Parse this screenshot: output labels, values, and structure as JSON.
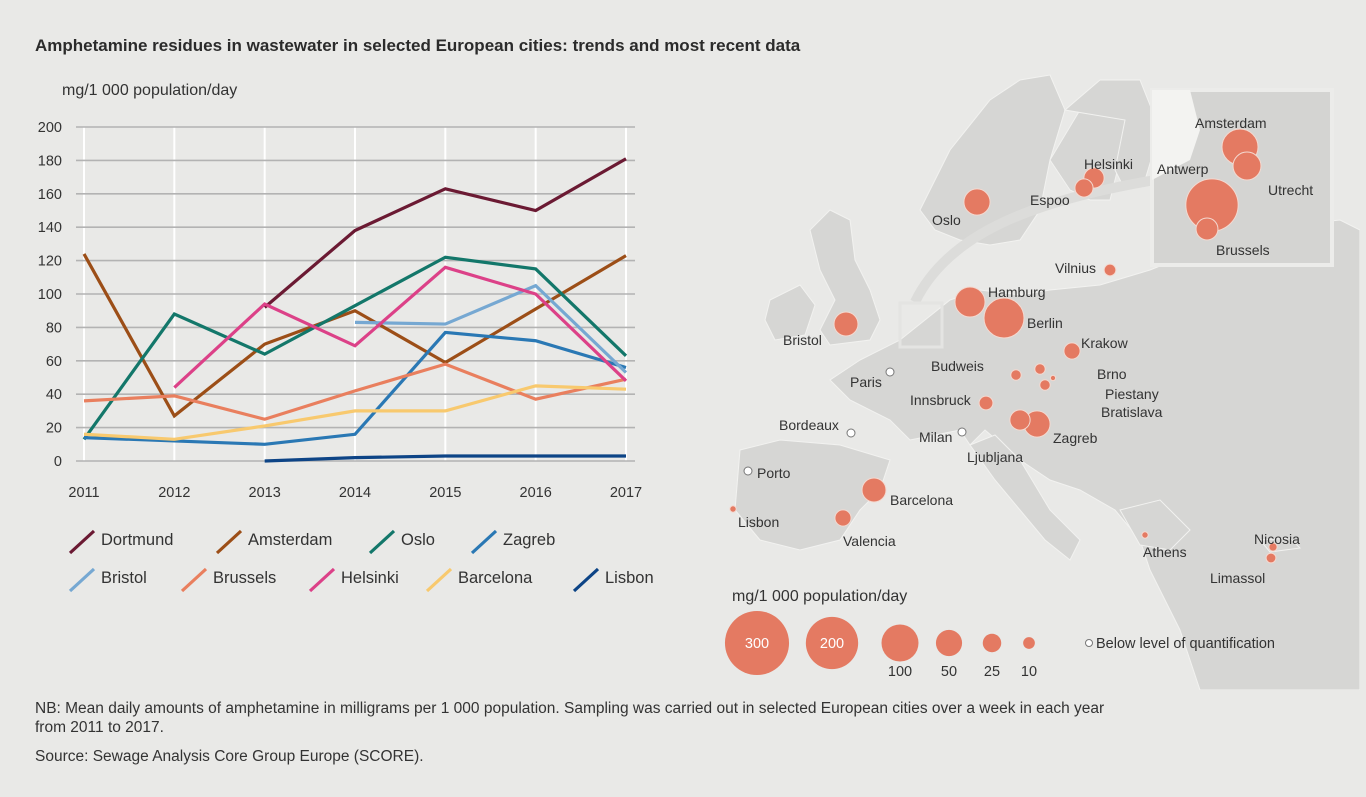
{
  "title": "Amphetamine residues in wastewater in selected European cities: trends and most recent data",
  "chart_data": [
    {
      "type": "line",
      "title": "",
      "ylabel": "mg/1 000 population/day",
      "xlabel": "",
      "x": [
        2011,
        2012,
        2013,
        2014,
        2015,
        2016,
        2017
      ],
      "x_tick_labels": [
        "2011",
        "2012",
        "2013",
        "2014",
        "2015",
        "2016",
        "2017"
      ],
      "ylim": [
        0,
        200
      ],
      "y_ticks": [
        0,
        20,
        40,
        60,
        80,
        100,
        120,
        140,
        160,
        180,
        200
      ],
      "y_tick_labels": [
        "0",
        "20",
        "40",
        "60",
        "80",
        "100",
        "120",
        "140",
        "160",
        "180",
        "200"
      ],
      "grid": "horizontal and vertical",
      "legend_placement": "bottom",
      "series": [
        {
          "name": "Dortmund",
          "color": "#6b1a33",
          "values": [
            null,
            null,
            92,
            138,
            163,
            150,
            181
          ]
        },
        {
          "name": "Amsterdam",
          "color": "#9c4e17",
          "values": [
            124,
            27,
            70,
            90,
            59,
            91,
            123
          ]
        },
        {
          "name": "Oslo",
          "color": "#13776a",
          "values": [
            13,
            88,
            64,
            93,
            122,
            115,
            63
          ]
        },
        {
          "name": "Zagreb",
          "color": "#2a78b4",
          "values": [
            14,
            12,
            10,
            16,
            77,
            72,
            56
          ]
        },
        {
          "name": "Bristol",
          "color": "#76a8d2",
          "values": [
            null,
            null,
            null,
            83,
            82,
            105,
            53
          ]
        },
        {
          "name": "Brussels",
          "color": "#e97f5e",
          "values": [
            36,
            39,
            25,
            42,
            58,
            37,
            49
          ]
        },
        {
          "name": "Helsinki",
          "color": "#dc4188",
          "values": [
            null,
            44,
            94,
            69,
            116,
            100,
            48
          ]
        },
        {
          "name": "Barcelona",
          "color": "#f8c96e",
          "values": [
            16,
            13,
            21,
            30,
            30,
            45,
            43
          ]
        },
        {
          "name": "Lisbon",
          "color": "#0d4486",
          "values": [
            null,
            null,
            0,
            2,
            3,
            3,
            3
          ]
        }
      ]
    },
    {
      "type": "bubble-map",
      "bubble_color": "#e47a62",
      "cities": [
        {
          "name": "Oslo",
          "value": 50
        },
        {
          "name": "Helsinki",
          "value": 30
        },
        {
          "name": "Espoo",
          "value": 24
        },
        {
          "name": "Amsterdam",
          "value": 95
        },
        {
          "name": "Utrecht",
          "value": 57
        },
        {
          "name": "Antwerp",
          "value": 200
        },
        {
          "name": "Brussels",
          "value": 35
        },
        {
          "name": "Vilnius",
          "value": 10
        },
        {
          "name": "Hamburg",
          "value": 66
        },
        {
          "name": "Berlin",
          "value": 117
        },
        {
          "name": "Bristol",
          "value": 42
        },
        {
          "name": "Krakow",
          "value": 19
        },
        {
          "name": "Budweis",
          "value": 8
        },
        {
          "name": "Brno",
          "value": 8
        },
        {
          "name": "Piestany",
          "value": 2
        },
        {
          "name": "Bratislava",
          "value": 8
        },
        {
          "name": "Innsbruck",
          "value": 14
        },
        {
          "name": "Ljubljana",
          "value": 30
        },
        {
          "name": "Zagreb",
          "value": 50
        },
        {
          "name": "Barcelona",
          "value": 42
        },
        {
          "name": "Valencia",
          "value": 19
        },
        {
          "name": "Lisbon",
          "value": 3
        },
        {
          "name": "Athens",
          "value": 3
        },
        {
          "name": "Nicosia",
          "value": 5
        },
        {
          "name": "Limassol",
          "value": 7
        },
        {
          "name": "Paris",
          "value": null,
          "below_loq": true
        },
        {
          "name": "Bordeaux",
          "value": null,
          "below_loq": true
        },
        {
          "name": "Milan",
          "value": null,
          "below_loq": true
        },
        {
          "name": "Porto",
          "value": null,
          "below_loq": true
        }
      ],
      "legend": {
        "title": "mg/1 000 population/day",
        "sizes": [
          300,
          200,
          100,
          50,
          25,
          10
        ],
        "size_labels": [
          "300",
          "200",
          "100",
          "50",
          "25",
          "10"
        ],
        "below_loq_label": "Below level of quantification"
      }
    }
  ],
  "footnote": {
    "line1": "NB: Mean daily amounts of amphetamine in milligrams per 1 000 population. Sampling was carried out in selected European cities over a week in each year",
    "line2": "from 2011 to 2017.",
    "source": "Source: Sewage Analysis Core Group Europe (SCORE)."
  }
}
